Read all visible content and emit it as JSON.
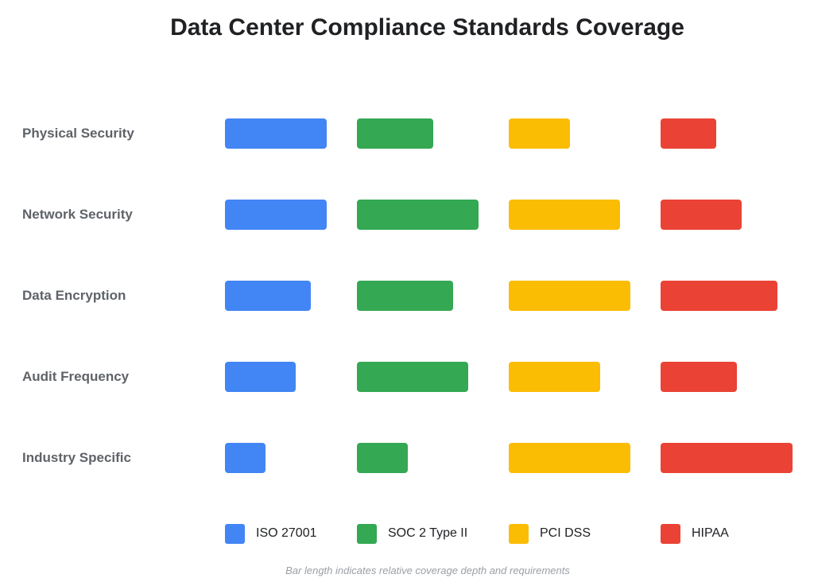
{
  "chart_data": {
    "type": "bar",
    "orientation": "horizontal-grouped-columns",
    "title": "Data Center Compliance Standards Coverage",
    "categories": [
      "Physical Security",
      "Network Security",
      "Data Encryption",
      "Audit Frequency",
      "Industry Specific"
    ],
    "series": [
      {
        "name": "ISO 27001",
        "color": "#4285F4",
        "values": [
          10,
          10,
          8.5,
          7,
          4
        ]
      },
      {
        "name": "SOC 2 Type II",
        "color": "#34A853",
        "values": [
          7.5,
          12,
          9.5,
          11,
          5
        ]
      },
      {
        "name": "PCI DSS",
        "color": "#FBBC04",
        "values": [
          6,
          11,
          12,
          9,
          12
        ]
      },
      {
        "name": "HIPAA",
        "color": "#EA4335",
        "values": [
          5.5,
          8,
          11.5,
          7.5,
          13
        ]
      }
    ],
    "xlabel": "",
    "ylabel": "",
    "grid": false,
    "legend": "bottom",
    "footnote": "Bar length indicates relative coverage depth and requirements"
  }
}
